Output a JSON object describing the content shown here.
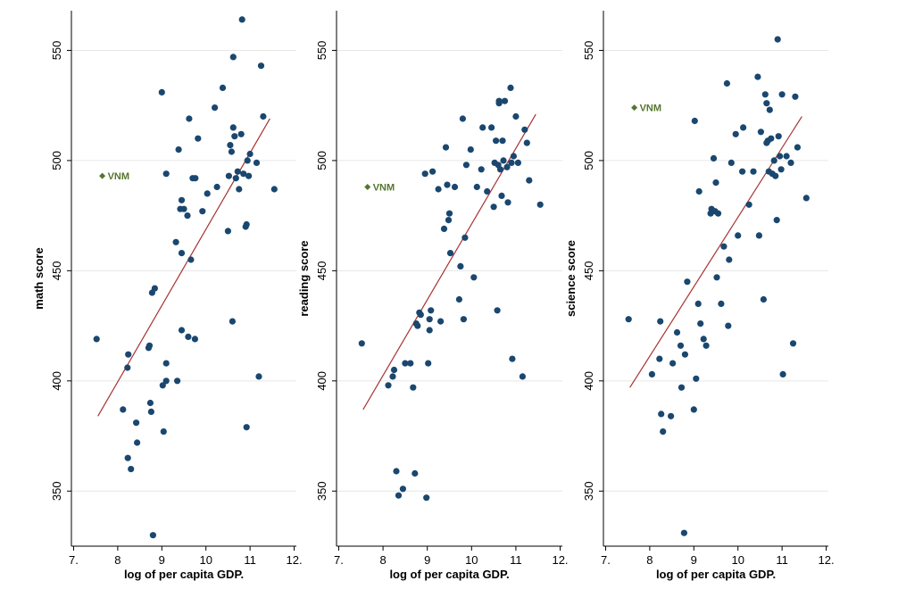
{
  "chart_data": [
    {
      "type": "scatter",
      "xlabel": "log of per capita GDP.",
      "ylabel": "math score",
      "xlim": [
        6.95,
        12.05
      ],
      "ylim": [
        325,
        568
      ],
      "xticks": [
        7,
        8,
        9,
        10,
        11,
        12
      ],
      "xtick_labels": [
        "7.",
        "8",
        "9",
        "10",
        "11",
        "12."
      ],
      "yticks": [
        350,
        400,
        450,
        500,
        550
      ],
      "ytick_labels": [
        "350",
        "400",
        "450",
        "500",
        "550"
      ],
      "grid": true,
      "highlight": {
        "label": "VNM",
        "x": 7.65,
        "y": 493,
        "color": "#55752f"
      },
      "fit_line": {
        "x": [
          7.55,
          11.45
        ],
        "y": [
          384,
          519
        ],
        "color": "#a83232"
      },
      "points": [
        [
          7.52,
          419
        ],
        [
          8.12,
          387
        ],
        [
          8.22,
          406
        ],
        [
          8.24,
          412
        ],
        [
          8.23,
          365
        ],
        [
          8.3,
          360
        ],
        [
          8.42,
          381
        ],
        [
          8.44,
          372
        ],
        [
          8.72,
          416
        ],
        [
          8.74,
          390
        ],
        [
          8.76,
          386
        ],
        [
          8.84,
          442
        ],
        [
          9.0,
          531
        ],
        [
          9.02,
          398
        ],
        [
          9.04,
          377
        ],
        [
          9.1,
          494
        ],
        [
          9.1,
          408
        ],
        [
          9.1,
          400
        ],
        [
          9.32,
          463
        ],
        [
          9.35,
          400
        ],
        [
          9.38,
          505
        ],
        [
          9.42,
          478
        ],
        [
          9.45,
          458
        ],
        [
          9.45,
          482
        ],
        [
          9.45,
          423
        ],
        [
          9.5,
          478
        ],
        [
          9.58,
          475
        ],
        [
          9.6,
          420
        ],
        [
          9.62,
          519
        ],
        [
          9.66,
          455
        ],
        [
          9.7,
          492
        ],
        [
          9.75,
          419
        ],
        [
          9.76,
          492
        ],
        [
          9.82,
          510
        ],
        [
          9.92,
          477
        ],
        [
          10.03,
          485
        ],
        [
          10.2,
          524
        ],
        [
          10.25,
          488
        ],
        [
          10.38,
          533
        ],
        [
          10.5,
          468
        ],
        [
          10.52,
          493
        ],
        [
          10.55,
          507
        ],
        [
          10.58,
          504
        ],
        [
          10.6,
          427
        ],
        [
          10.62,
          547
        ],
        [
          10.62,
          515
        ],
        [
          10.65,
          511
        ],
        [
          10.68,
          492
        ],
        [
          10.72,
          495
        ],
        [
          10.75,
          487
        ],
        [
          10.8,
          512
        ],
        [
          10.82,
          564
        ],
        [
          10.85,
          494
        ],
        [
          10.9,
          470
        ],
        [
          10.92,
          471
        ],
        [
          10.92,
          379
        ],
        [
          10.94,
          500
        ],
        [
          10.97,
          493
        ],
        [
          11.0,
          503
        ],
        [
          11.15,
          499
        ],
        [
          11.2,
          402
        ],
        [
          11.25,
          543
        ],
        [
          11.3,
          520
        ],
        [
          11.55,
          487
        ],
        [
          8.78,
          440
        ],
        [
          8.8,
          330
        ],
        [
          8.7,
          415
        ]
      ]
    },
    {
      "type": "scatter",
      "xlabel": "log of per capita GDP.",
      "ylabel": "reading score",
      "xlim": [
        6.95,
        12.05
      ],
      "ylim": [
        325,
        568
      ],
      "xticks": [
        7,
        8,
        9,
        10,
        11,
        12
      ],
      "xtick_labels": [
        "7.",
        "8",
        "9",
        "10",
        "11",
        "12."
      ],
      "yticks": [
        350,
        400,
        450,
        500,
        550
      ],
      "ytick_labels": [
        "350",
        "400",
        "450",
        "500",
        "550"
      ],
      "grid": true,
      "highlight": {
        "label": "VNM",
        "x": 7.65,
        "y": 488,
        "color": "#55752f"
      },
      "fit_line": {
        "x": [
          7.55,
          11.45
        ],
        "y": [
          387,
          521
        ],
        "color": "#a83232"
      },
      "points": [
        [
          7.52,
          417
        ],
        [
          8.12,
          398
        ],
        [
          8.22,
          402
        ],
        [
          8.25,
          405
        ],
        [
          8.3,
          359
        ],
        [
          8.35,
          348
        ],
        [
          8.45,
          351
        ],
        [
          8.5,
          408
        ],
        [
          8.62,
          408
        ],
        [
          8.68,
          397
        ],
        [
          8.72,
          358
        ],
        [
          8.75,
          426
        ],
        [
          8.78,
          425
        ],
        [
          8.82,
          431
        ],
        [
          8.85,
          430
        ],
        [
          8.95,
          494
        ],
        [
          8.98,
          347
        ],
        [
          9.02,
          408
        ],
        [
          9.05,
          423
        ],
        [
          9.05,
          428
        ],
        [
          9.08,
          432
        ],
        [
          9.12,
          495
        ],
        [
          9.25,
          487
        ],
        [
          9.3,
          427
        ],
        [
          9.38,
          469
        ],
        [
          9.42,
          506
        ],
        [
          9.45,
          489
        ],
        [
          9.48,
          473
        ],
        [
          9.5,
          476
        ],
        [
          9.52,
          458
        ],
        [
          9.62,
          488
        ],
        [
          9.72,
          437
        ],
        [
          9.75,
          452
        ],
        [
          9.8,
          519
        ],
        [
          9.82,
          428
        ],
        [
          9.85,
          465
        ],
        [
          9.88,
          498
        ],
        [
          9.98,
          505
        ],
        [
          10.05,
          447
        ],
        [
          10.12,
          488
        ],
        [
          10.22,
          496
        ],
        [
          10.25,
          515
        ],
        [
          10.35,
          486
        ],
        [
          10.45,
          515
        ],
        [
          10.5,
          479
        ],
        [
          10.52,
          499
        ],
        [
          10.55,
          509
        ],
        [
          10.58,
          432
        ],
        [
          10.6,
          498
        ],
        [
          10.62,
          526
        ],
        [
          10.65,
          496
        ],
        [
          10.68,
          484
        ],
        [
          10.7,
          509
        ],
        [
          10.72,
          500
        ],
        [
          10.75,
          527
        ],
        [
          10.82,
          481
        ],
        [
          10.88,
          533
        ],
        [
          10.9,
          499
        ],
        [
          10.92,
          410
        ],
        [
          10.95,
          502
        ],
        [
          11.0,
          520
        ],
        [
          11.05,
          499
        ],
        [
          11.15,
          402
        ],
        [
          11.2,
          514
        ],
        [
          11.25,
          508
        ],
        [
          11.3,
          491
        ],
        [
          11.55,
          480
        ],
        [
          10.8,
          497
        ],
        [
          10.62,
          527
        ]
      ]
    },
    {
      "type": "scatter",
      "xlabel": "log of per capita GDP.",
      "ylabel": "science score",
      "xlim": [
        6.95,
        12.05
      ],
      "ylim": [
        325,
        568
      ],
      "xticks": [
        7,
        8,
        9,
        10,
        11,
        12
      ],
      "xtick_labels": [
        "7.",
        "8",
        "9",
        "10",
        "11",
        "12."
      ],
      "yticks": [
        350,
        400,
        450,
        500,
        550
      ],
      "ytick_labels": [
        "350",
        "400",
        "450",
        "500",
        "550"
      ],
      "grid": true,
      "highlight": {
        "label": "VNM",
        "x": 7.65,
        "y": 524,
        "color": "#55752f"
      },
      "fit_line": {
        "x": [
          7.55,
          11.45
        ],
        "y": [
          397,
          520
        ],
        "color": "#a83232"
      },
      "points": [
        [
          7.52,
          428
        ],
        [
          8.05,
          403
        ],
        [
          8.22,
          410
        ],
        [
          8.24,
          427
        ],
        [
          8.26,
          385
        ],
        [
          8.3,
          377
        ],
        [
          8.48,
          384
        ],
        [
          8.52,
          408
        ],
        [
          8.62,
          422
        ],
        [
          8.7,
          416
        ],
        [
          8.72,
          397
        ],
        [
          8.78,
          331
        ],
        [
          8.8,
          412
        ],
        [
          8.85,
          445
        ],
        [
          9.0,
          387
        ],
        [
          9.02,
          518
        ],
        [
          9.05,
          401
        ],
        [
          9.1,
          435
        ],
        [
          9.12,
          486
        ],
        [
          9.15,
          426
        ],
        [
          9.22,
          419
        ],
        [
          9.28,
          416
        ],
        [
          9.38,
          476
        ],
        [
          9.4,
          478
        ],
        [
          9.45,
          501
        ],
        [
          9.48,
          477
        ],
        [
          9.5,
          490
        ],
        [
          9.52,
          447
        ],
        [
          9.55,
          476
        ],
        [
          9.62,
          435
        ],
        [
          9.68,
          461
        ],
        [
          9.75,
          535
        ],
        [
          9.78,
          425
        ],
        [
          9.8,
          455
        ],
        [
          9.85,
          499
        ],
        [
          9.95,
          512
        ],
        [
          10.0,
          466
        ],
        [
          10.1,
          495
        ],
        [
          10.12,
          515
        ],
        [
          10.25,
          480
        ],
        [
          10.35,
          495
        ],
        [
          10.45,
          538
        ],
        [
          10.48,
          466
        ],
        [
          10.52,
          513
        ],
        [
          10.58,
          437
        ],
        [
          10.62,
          530
        ],
        [
          10.65,
          526
        ],
        [
          10.68,
          509
        ],
        [
          10.7,
          495
        ],
        [
          10.72,
          523
        ],
        [
          10.75,
          510
        ],
        [
          10.78,
          494
        ],
        [
          10.85,
          493
        ],
        [
          10.88,
          473
        ],
        [
          10.9,
          555
        ],
        [
          10.92,
          511
        ],
        [
          10.95,
          502
        ],
        [
          10.98,
          496
        ],
        [
          11.0,
          530
        ],
        [
          11.02,
          403
        ],
        [
          11.1,
          502
        ],
        [
          11.2,
          499
        ],
        [
          11.25,
          417
        ],
        [
          11.3,
          529
        ],
        [
          11.35,
          506
        ],
        [
          11.55,
          483
        ],
        [
          10.82,
          500
        ],
        [
          10.65,
          508
        ]
      ]
    }
  ]
}
